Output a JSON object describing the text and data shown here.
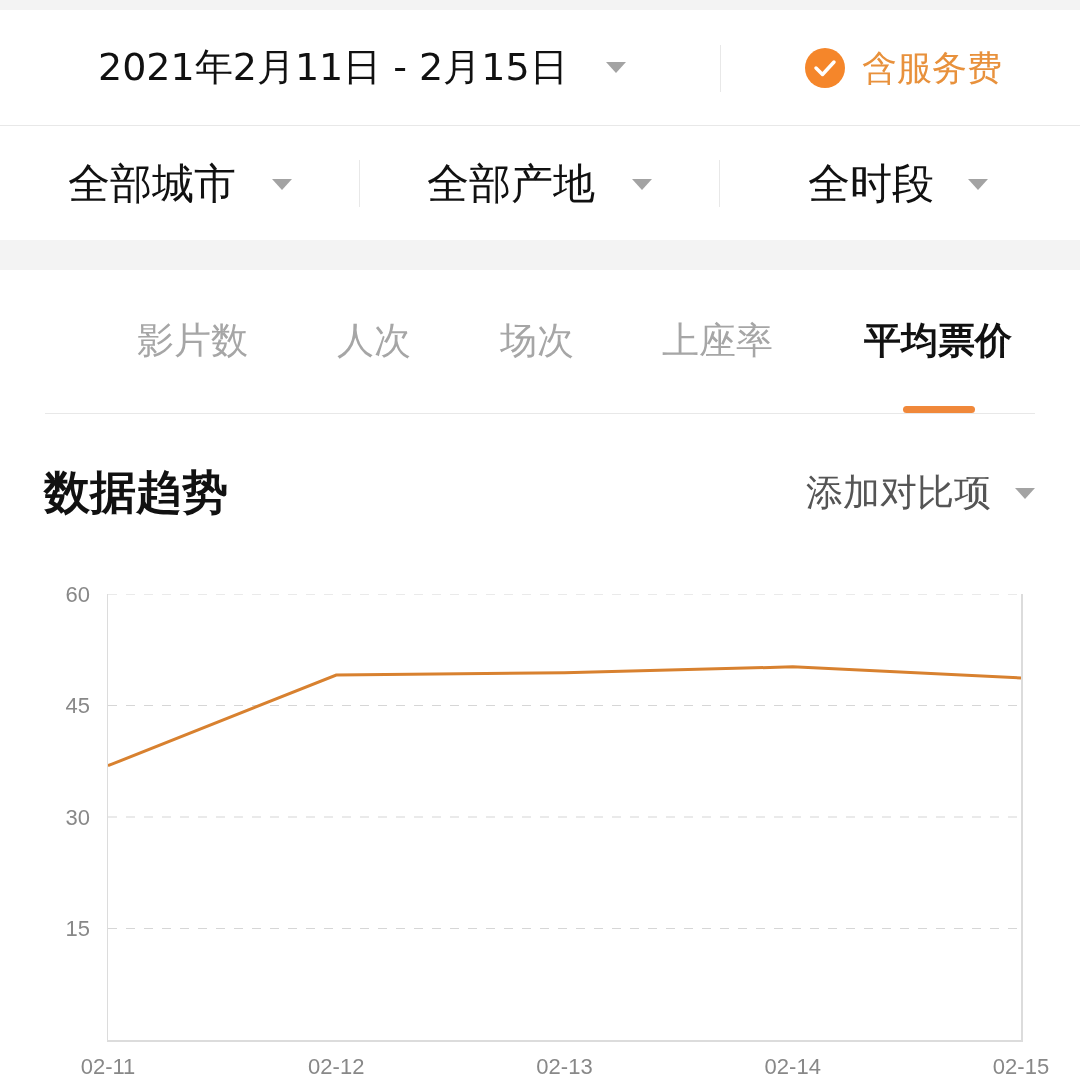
{
  "chart_data": {
    "type": "line",
    "title": "数据趋势",
    "annotations": [
      "2021年2月11日 - 2月15日",
      "含服务费",
      "全部城市",
      "全部产地",
      "全时段",
      "影片数",
      "人次",
      "场次",
      "上座率",
      "平均票价",
      "添加对比项"
    ],
    "categories": [
      "02-11",
      "02-12",
      "02-13",
      "02-14",
      "02-15"
    ],
    "series": [
      {
        "color": "#d8812f",
        "values": [
          36.9,
          49.1,
          49.4,
          50.2,
          48.7
        ]
      }
    ],
    "ylim": [
      0,
      60
    ],
    "yticks": [
      15,
      30,
      45,
      60
    ],
    "grid": "y"
  }
}
